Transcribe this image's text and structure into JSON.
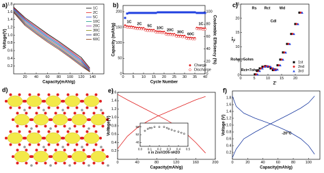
{
  "chart_data": [
    {
      "type": "line",
      "label": "a)",
      "xlabel": "Capacity(mAh/g)",
      "ylabel": "Voltage(V)",
      "x": [
        0,
        20,
        40,
        60,
        80,
        100,
        120,
        135
      ],
      "series": [
        {
          "name": "1C",
          "color": "#000000",
          "values": [
            1.72,
            1.45,
            1.24,
            1.03,
            0.84,
            0.63,
            0.42,
            0.15
          ]
        },
        {
          "name": "2C",
          "color": "#e02020",
          "values": [
            1.7,
            1.42,
            1.21,
            1.0,
            0.81,
            0.6,
            0.38,
            0.12
          ]
        },
        {
          "name": "5C",
          "color": "#2040e0",
          "values": [
            1.68,
            1.4,
            1.18,
            0.97,
            0.78,
            0.57,
            0.35,
            0.1
          ]
        },
        {
          "name": "10C",
          "color": "#1a9a8a",
          "values": [
            1.66,
            1.37,
            1.15,
            0.94,
            0.75,
            0.54,
            0.32,
            0.08
          ]
        },
        {
          "name": "20C",
          "color": "#9a30b0",
          "values": [
            1.64,
            1.34,
            1.12,
            0.91,
            0.72,
            0.51,
            0.29,
            0.07
          ]
        },
        {
          "name": "30C",
          "color": "#8a8a10",
          "values": [
            1.62,
            1.31,
            1.09,
            0.88,
            0.69,
            0.48,
            0.26,
            0.06
          ]
        },
        {
          "name": "40C",
          "color": "#202080",
          "values": [
            1.6,
            1.28,
            1.06,
            0.85,
            0.66,
            0.45,
            0.23,
            0.05
          ]
        },
        {
          "name": "60C",
          "color": "#8a3a10",
          "values": [
            1.58,
            1.25,
            1.03,
            0.82,
            0.63,
            0.42,
            0.2,
            0.05
          ]
        }
      ],
      "xlim": [
        0,
        160
      ],
      "xticks": [
        20,
        40,
        60,
        80,
        100,
        120,
        140
      ],
      "ylim": [
        0,
        1.8
      ],
      "yticks": [
        0.2,
        0.4,
        0.6,
        0.8,
        {
          "value": 1,
          "label": "1.0"
        },
        1.2,
        1.4,
        1.6,
        1.8
      ],
      "legend": "upper right"
    },
    {
      "type": "scatter",
      "label": "b)",
      "xlabel": "Cycle Number",
      "ylabel": "Capacity (mAh/g)",
      "y2label": "Coulombic Efficiency (%)",
      "x": [
        1,
        2,
        3,
        4,
        5,
        6,
        7,
        8,
        9,
        10,
        11,
        12,
        13,
        14,
        15,
        16,
        17,
        18,
        19,
        20,
        21,
        22,
        23,
        24,
        25,
        26,
        27,
        28,
        29,
        30,
        31,
        32,
        33,
        34,
        35,
        36,
        37,
        38,
        39,
        40
      ],
      "series": [
        {
          "name": "Charge",
          "color": "#e02020",
          "marker": "circle",
          "values": [
            156,
            153,
            152,
            152,
            151,
            149,
            148,
            148,
            147,
            147,
            143,
            142,
            142,
            141,
            141,
            137,
            136,
            136,
            135,
            135,
            130,
            129,
            129,
            128,
            128,
            124,
            123,
            123,
            122,
            122,
            117,
            116,
            116,
            115,
            115,
            148,
            147,
            147,
            146,
            146
          ]
        },
        {
          "name": "Discharge",
          "color": "#e02020",
          "marker": "open-circle",
          "values": [
            152,
            150,
            149,
            149,
            148,
            146,
            145,
            145,
            144,
            144,
            140,
            139,
            139,
            138,
            138,
            134,
            133,
            133,
            132,
            132,
            127,
            126,
            126,
            125,
            125,
            121,
            120,
            120,
            119,
            119,
            114,
            113,
            113,
            112,
            112,
            145,
            144,
            144,
            143,
            143
          ]
        },
        {
          "color": "#2040e0",
          "marker": "square",
          "axis": "y2",
          "values": [
            90,
            97,
            98,
            98,
            98,
            98,
            98,
            98,
            98,
            98,
            98,
            98,
            98,
            98,
            98,
            98,
            99,
            99,
            99,
            99,
            99,
            99,
            99,
            99,
            99,
            99,
            99,
            99,
            99,
            99,
            99,
            99,
            99,
            99,
            99,
            98,
            98,
            98,
            98,
            98
          ]
        }
      ],
      "annotations": [
        "1C",
        "2C",
        "5C",
        "10C",
        "20C",
        "30C",
        "60C",
        "1C"
      ],
      "xlim": [
        0,
        40
      ],
      "xticks": [
        0,
        5,
        10,
        15,
        20,
        25,
        30,
        35,
        40
      ],
      "ylim": [
        0,
        220
      ],
      "yticks": [
        0,
        50,
        100,
        150,
        200
      ],
      "y2lim": [
        0,
        110
      ],
      "y2ticks": [
        0,
        20,
        40,
        60,
        80,
        100
      ],
      "legend": "lower right"
    },
    {
      "type": "scatter",
      "label": "c)",
      "xlabel": "Z'",
      "ylabel": "-Z''",
      "series": [
        {
          "name": "1st",
          "color": "#000000",
          "marker": "square",
          "x": [
            5.2,
            6,
            7,
            8,
            9,
            10,
            11,
            11.8,
            12.5,
            13.5,
            14.5,
            15.5,
            17,
            18.5,
            20,
            21.5
          ],
          "values": [
            0.3,
            1.5,
            2.4,
            3,
            3.2,
            3,
            2.4,
            1.8,
            2,
            3.5,
            5.5,
            8,
            11,
            14.5,
            18,
            22
          ]
        },
        {
          "name": "2nd",
          "color": "#e02020",
          "marker": "circle",
          "x": [
            5.7,
            6.5,
            7.5,
            8.5,
            9.5,
            10.5,
            11.5,
            12.3,
            13,
            14,
            15,
            16,
            17.5,
            19,
            20.5,
            22
          ],
          "values": [
            0.3,
            1.5,
            2.4,
            3,
            3.2,
            3,
            2.4,
            1.8,
            2,
            3.5,
            5.5,
            8,
            11,
            14.5,
            18,
            22
          ]
        },
        {
          "name": "3rd",
          "color": "#2040e0",
          "marker": "triangle",
          "x": [
            6.2,
            7,
            8,
            9,
            10,
            11,
            12,
            12.8,
            13.5,
            14.5,
            15.5,
            16.5,
            18,
            19.5,
            21,
            22.5
          ],
          "values": [
            0.3,
            1.5,
            2.4,
            3,
            3.2,
            3,
            2.4,
            1.8,
            2,
            3.5,
            5.5,
            8,
            11,
            14.5,
            18,
            22
          ]
        }
      ],
      "annotations": [
        "Rohm=5ohm",
        "Rct=7ohm",
        "Rs",
        "Rct",
        "Wd",
        "Cdl"
      ],
      "xlim": [
        0,
        25
      ],
      "xticks": [
        0,
        5,
        10,
        15,
        20
      ],
      "ylim": [
        0,
        25
      ],
      "yticks": [
        0,
        5,
        10,
        15,
        20,
        25
      ],
      "legend": "lower right"
    },
    {
      "type": "line",
      "label": "e)",
      "xlabel": "Capacity(mAh/g)",
      "ylabel": "Voltage(V)",
      "x": [
        0,
        20,
        40,
        60,
        80,
        100,
        120,
        140,
        160,
        180
      ],
      "series": [
        {
          "color": "#e02020",
          "values": [
            0.25,
            0.55,
            0.75,
            0.9,
            1.02,
            1.12,
            1.22,
            1.32,
            1.42,
            1.5
          ]
        },
        {
          "color": "#e02020",
          "values": [
            1.55,
            1.42,
            1.3,
            1.18,
            1.06,
            0.94,
            0.8,
            0.62,
            0.4,
            0.15
          ]
        }
      ],
      "xlim": [
        0,
        200
      ],
      "xticks": [
        0,
        40,
        80,
        120,
        160,
        200
      ],
      "ylim": [
        0,
        1.6
      ],
      "yticks": [
        0.2,
        0.4,
        0.6,
        0.8,
        {
          "value": 1,
          "label": "1.0"
        },
        1.2,
        1.4,
        1.6
      ]
    },
    {
      "type": "scatter",
      "xlabel": "x in ZnxV2O5·nH2O",
      "x": [
        0.05,
        0.08,
        0.1,
        0.12,
        0.15,
        0.2,
        0.25,
        0.28,
        0.3,
        0.33,
        0.36,
        0.4,
        0.43,
        0.46
      ],
      "series": [
        {
          "color": "#000000",
          "marker": "open-circle",
          "values": [
            54,
            55,
            55.5,
            55.5,
            56,
            56,
            56,
            55.5,
            55,
            54.5,
            54,
            53.5,
            53,
            52.5
          ]
        }
      ],
      "xlim": [
        0,
        0.5
      ],
      "xticks": [
        {
          "value": 0,
          "label": "0.0"
        },
        0.1,
        0.2,
        0.3,
        0.4,
        0.5
      ],
      "ylim": [
        46,
        58
      ],
      "yticks": [
        48,
        52,
        56
      ]
    },
    {
      "type": "line",
      "label": "f)",
      "xlabel": "Capacity(mAh/g)",
      "ylabel": "Voltage (V)",
      "x": [
        0,
        5,
        15,
        30,
        45,
        60,
        75,
        90,
        100,
        108
      ],
      "series": [
        {
          "color": "#1a3aa0",
          "values": [
            0.05,
            0.3,
            0.6,
            0.8,
            0.98,
            1.15,
            1.32,
            1.5,
            1.65,
            1.85
          ]
        },
        {
          "color": "#1a3aa0",
          "values": [
            1.85,
            1.55,
            1.35,
            1.2,
            1.08,
            0.95,
            0.8,
            0.6,
            0.4,
            0.15
          ]
        }
      ],
      "annotations": [
        "-20°C"
      ],
      "xlim": [
        0,
        115
      ],
      "xticks": [
        0,
        20,
        40,
        60,
        80,
        100
      ],
      "ylim": [
        0,
        2.0
      ],
      "yticks": [
        0.2,
        0.4,
        0.6,
        0.8,
        {
          "value": 1,
          "label": "1.0"
        },
        1.2,
        1.4,
        1.6,
        1.8
      ]
    }
  ],
  "figure_d": {
    "label": "d)"
  }
}
